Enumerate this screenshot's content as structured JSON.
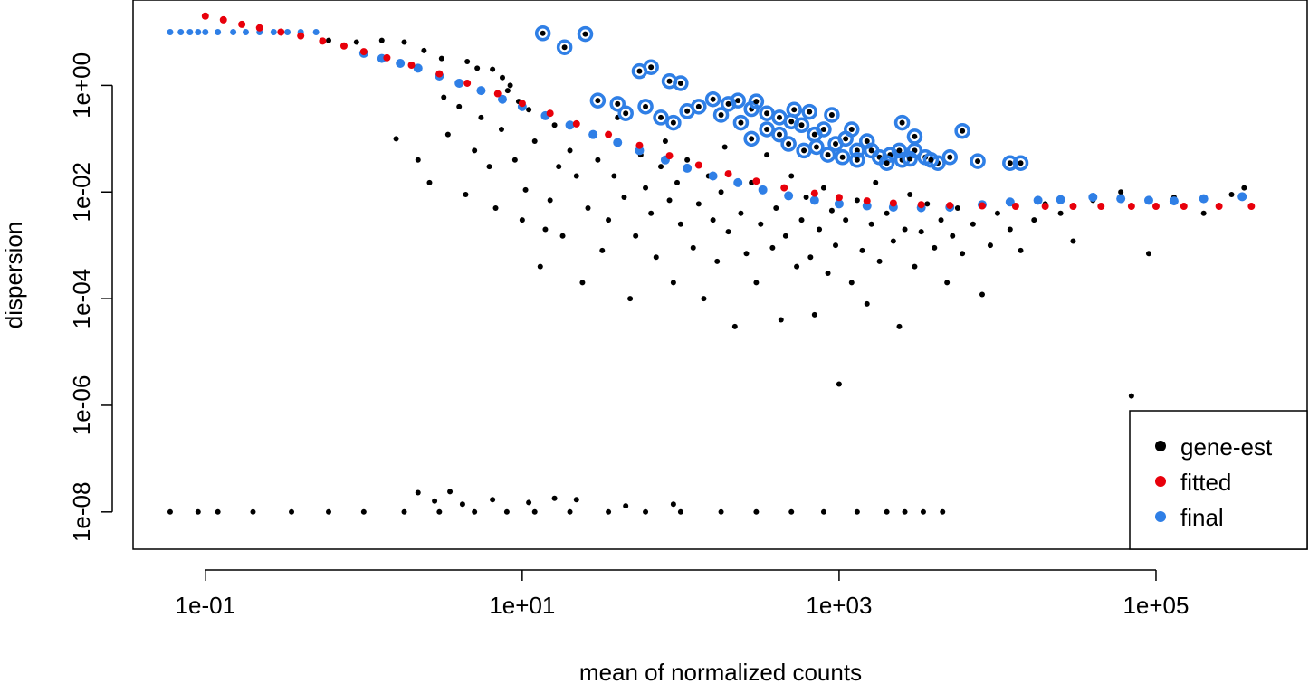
{
  "chart_data": {
    "type": "scatter",
    "xlabel": "mean of normalized counts",
    "ylabel": "dispersion",
    "xscale": "log10",
    "yscale": "log10",
    "xlim": [
      0.035,
      900000
    ],
    "ylim": [
      2e-09,
      40
    ],
    "grid": false,
    "legend_placement": "bottom-right",
    "x_ticks": [
      {
        "value": 0.1,
        "label": "1e-01"
      },
      {
        "value": 10,
        "label": "1e+01"
      },
      {
        "value": 1000,
        "label": "1e+03"
      },
      {
        "value": 100000,
        "label": "1e+05"
      }
    ],
    "y_ticks": [
      {
        "value": 1e-08,
        "label": "1e-08"
      },
      {
        "value": 1e-06,
        "label": "1e-06"
      },
      {
        "value": 0.0001,
        "label": "1e-04"
      },
      {
        "value": 0.01,
        "label": "1e-02"
      },
      {
        "value": 1,
        "label": "1e+00"
      }
    ],
    "series": [
      {
        "name": "gene-est",
        "color": "#000000"
      },
      {
        "name": "fitted",
        "color": "#e8000b"
      },
      {
        "name": "final",
        "color": "#2f7fe6"
      }
    ],
    "points": {
      "gene_est_zero_dispersion": [
        [
          0.06,
          1e-08
        ],
        [
          0.09,
          1e-08
        ],
        [
          0.12,
          1e-08
        ],
        [
          0.2,
          1e-08
        ],
        [
          0.35,
          1e-08
        ],
        [
          0.6,
          1e-08
        ],
        [
          1,
          1e-08
        ],
        [
          1.8,
          1e-08
        ],
        [
          3,
          1e-08
        ],
        [
          5,
          1e-08
        ],
        [
          8,
          1e-08
        ],
        [
          12,
          1e-08
        ],
        [
          20,
          1e-08
        ],
        [
          35,
          1e-08
        ],
        [
          60,
          1e-08
        ],
        [
          100,
          1e-08
        ],
        [
          180,
          1e-08
        ],
        [
          300,
          1e-08
        ],
        [
          500,
          1e-08
        ],
        [
          800,
          1e-08
        ],
        [
          1300,
          1e-08
        ],
        [
          2000,
          1e-08
        ],
        [
          2600,
          1e-08
        ],
        [
          3400,
          1e-08
        ],
        [
          4500,
          1e-08
        ],
        [
          2.2,
          2.3e-08
        ],
        [
          2.8,
          1.6e-08
        ],
        [
          3.5,
          2.4e-08
        ],
        [
          4.2,
          1.4e-08
        ],
        [
          6.5,
          1.7e-08
        ],
        [
          11,
          1.5e-08
        ],
        [
          16,
          1.8e-08
        ],
        [
          22,
          1.7e-08
        ],
        [
          45,
          1.3e-08
        ],
        [
          90,
          1.4e-08
        ]
      ],
      "gene_est": [
        [
          0.6,
          7
        ],
        [
          0.9,
          6.5
        ],
        [
          1.3,
          7
        ],
        [
          1.8,
          6.5
        ],
        [
          2.4,
          4.5
        ],
        [
          3.1,
          3.2
        ],
        [
          4.5,
          2.8
        ],
        [
          5.2,
          2.1
        ],
        [
          6.5,
          2
        ],
        [
          7.5,
          1.4
        ],
        [
          8.4,
          1.0
        ],
        [
          1.6,
          0.1
        ],
        [
          2.2,
          0.04
        ],
        [
          2.6,
          0.015
        ],
        [
          3.2,
          0.6
        ],
        [
          3.4,
          0.12
        ],
        [
          4.0,
          0.4
        ],
        [
          4.4,
          0.009
        ],
        [
          5.0,
          0.06
        ],
        [
          5.5,
          0.25
        ],
        [
          6.2,
          0.03
        ],
        [
          6.8,
          0.005
        ],
        [
          7.4,
          0.15
        ],
        [
          8.1,
          0.8
        ],
        [
          9.0,
          0.04
        ],
        [
          9.5,
          0.5
        ],
        [
          10,
          0.003
        ],
        [
          10.5,
          0.011
        ],
        [
          11,
          0.35
        ],
        [
          12,
          0.09
        ],
        [
          13,
          0.0004
        ],
        [
          14,
          0.002
        ],
        [
          15,
          0.007
        ],
        [
          16,
          0.18
        ],
        [
          17,
          0.03
        ],
        [
          18,
          0.0015
        ],
        [
          20,
          0.06
        ],
        [
          22,
          0.02
        ],
        [
          24,
          0.0002
        ],
        [
          26,
          0.005
        ],
        [
          28,
          0.12
        ],
        [
          30,
          0.04
        ],
        [
          32,
          0.0008
        ],
        [
          35,
          0.003
        ],
        [
          38,
          0.02
        ],
        [
          40,
          0.25
        ],
        [
          44,
          0.008
        ],
        [
          48,
          0.0001
        ],
        [
          52,
          0.0015
        ],
        [
          56,
          0.05
        ],
        [
          60,
          0.012
        ],
        [
          65,
          0.004
        ],
        [
          70,
          0.0006
        ],
        [
          75,
          0.03
        ],
        [
          80,
          0.09
        ],
        [
          85,
          0.007
        ],
        [
          90,
          0.0002
        ],
        [
          95,
          0.015
        ],
        [
          100,
          0.0025
        ],
        [
          110,
          0.04
        ],
        [
          120,
          0.0009
        ],
        [
          130,
          0.006
        ],
        [
          140,
          0.0001
        ],
        [
          150,
          0.02
        ],
        [
          160,
          0.003
        ],
        [
          170,
          0.0005
        ],
        [
          180,
          0.01
        ],
        [
          190,
          0.07
        ],
        [
          200,
          0.0018
        ],
        [
          220,
          3e-05
        ],
        [
          240,
          0.004
        ],
        [
          260,
          0.0007
        ],
        [
          280,
          0.015
        ],
        [
          300,
          0.0002
        ],
        [
          320,
          0.0025
        ],
        [
          350,
          0.05
        ],
        [
          380,
          0.0009
        ],
        [
          400,
          0.005
        ],
        [
          430,
          4e-05
        ],
        [
          460,
          0.0015
        ],
        [
          500,
          0.02
        ],
        [
          540,
          0.0004
        ],
        [
          580,
          0.003
        ],
        [
          620,
          0.008
        ],
        [
          660,
          0.0006
        ],
        [
          700,
          5e-05
        ],
        [
          750,
          0.002
        ],
        [
          800,
          0.012
        ],
        [
          850,
          0.0003
        ],
        [
          900,
          0.0045
        ],
        [
          950,
          0.001
        ],
        [
          1000,
          2.5e-06
        ],
        [
          1100,
          0.003
        ],
        [
          1200,
          0.0002
        ],
        [
          1300,
          0.007
        ],
        [
          1400,
          0.0008
        ],
        [
          1500,
          8e-05
        ],
        [
          1600,
          0.0025
        ],
        [
          1700,
          0.015
        ],
        [
          1800,
          0.0005
        ],
        [
          2000,
          0.004
        ],
        [
          2200,
          0.0012
        ],
        [
          2400,
          3e-05
        ],
        [
          2600,
          0.002
        ],
        [
          2800,
          0.009
        ],
        [
          3000,
          0.0004
        ],
        [
          3300,
          0.0018
        ],
        [
          3600,
          0.006
        ],
        [
          4000,
          0.0009
        ],
        [
          4400,
          0.003
        ],
        [
          4800,
          0.0002
        ],
        [
          5200,
          0.0015
        ],
        [
          5600,
          0.005
        ],
        [
          6000,
          0.0007
        ],
        [
          7000,
          0.0025
        ],
        [
          8000,
          0.00012
        ],
        [
          9000,
          0.001
        ],
        [
          10000,
          0.004
        ],
        [
          12000,
          0.002
        ],
        [
          14000,
          0.0008
        ],
        [
          17000,
          0.003
        ],
        [
          20000,
          0.006
        ],
        [
          25000,
          0.004
        ],
        [
          30000,
          0.0012
        ],
        [
          40000,
          0.007
        ],
        [
          60000,
          0.01
        ],
        [
          90000,
          0.0007
        ],
        [
          130000,
          0.008
        ],
        [
          200000,
          0.004
        ],
        [
          360000,
          0.012
        ],
        [
          70000,
          1.5e-06
        ],
        [
          300000,
          0.009
        ]
      ],
      "fitted": [
        [
          0.1,
          20
        ],
        [
          0.13,
          17
        ],
        [
          0.17,
          14
        ],
        [
          0.22,
          12
        ],
        [
          0.3,
          10
        ],
        [
          0.4,
          8.5
        ],
        [
          0.55,
          6.8
        ],
        [
          0.75,
          5.5
        ],
        [
          1,
          4.3
        ],
        [
          1.4,
          3.3
        ],
        [
          2,
          2.4
        ],
        [
          3,
          1.65
        ],
        [
          4.5,
          1.1
        ],
        [
          7,
          0.7
        ],
        [
          10,
          0.46
        ],
        [
          15,
          0.3
        ],
        [
          22,
          0.19
        ],
        [
          35,
          0.12
        ],
        [
          55,
          0.075
        ],
        [
          85,
          0.048
        ],
        [
          130,
          0.032
        ],
        [
          200,
          0.022
        ],
        [
          300,
          0.016
        ],
        [
          450,
          0.012
        ],
        [
          700,
          0.0095
        ],
        [
          1000,
          0.0079
        ],
        [
          1500,
          0.0068
        ],
        [
          2200,
          0.0062
        ],
        [
          3300,
          0.0058
        ],
        [
          5000,
          0.0056
        ],
        [
          8000,
          0.0055
        ],
        [
          13000,
          0.0054
        ],
        [
          20000,
          0.0054
        ],
        [
          30000,
          0.0054
        ],
        [
          45000,
          0.0054
        ],
        [
          70000,
          0.0054
        ],
        [
          100000,
          0.0054
        ],
        [
          150000,
          0.0054
        ],
        [
          250000,
          0.0054
        ],
        [
          400000,
          0.0054
        ]
      ],
      "final_boundary": [
        [
          0.06,
          10
        ],
        [
          0.07,
          10
        ],
        [
          0.08,
          10
        ],
        [
          0.09,
          10
        ],
        [
          0.1,
          10
        ],
        [
          0.12,
          10
        ],
        [
          0.15,
          10
        ],
        [
          0.18,
          10
        ],
        [
          0.22,
          10
        ],
        [
          0.27,
          10
        ],
        [
          0.33,
          10
        ],
        [
          0.4,
          10
        ],
        [
          0.5,
          10
        ]
      ],
      "final": [
        [
          1,
          4.0
        ],
        [
          1.3,
          3.2
        ],
        [
          1.7,
          2.6
        ],
        [
          2.2,
          2.1
        ],
        [
          3,
          1.5
        ],
        [
          4,
          1.1
        ],
        [
          5.5,
          0.8
        ],
        [
          7.5,
          0.55
        ],
        [
          10,
          0.4
        ],
        [
          14,
          0.27
        ],
        [
          20,
          0.18
        ],
        [
          28,
          0.12
        ],
        [
          40,
          0.085
        ],
        [
          55,
          0.06
        ],
        [
          80,
          0.04
        ],
        [
          110,
          0.028
        ],
        [
          160,
          0.02
        ],
        [
          230,
          0.015
        ],
        [
          330,
          0.011
        ],
        [
          480,
          0.0085
        ],
        [
          700,
          0.007
        ],
        [
          1000,
          0.006
        ],
        [
          1500,
          0.0055
        ],
        [
          2200,
          0.0052
        ],
        [
          3300,
          0.0051
        ],
        [
          5000,
          0.0052
        ],
        [
          8000,
          0.0058
        ],
        [
          12000,
          0.0065
        ],
        [
          18000,
          0.007
        ],
        [
          25000,
          0.0072
        ],
        [
          40000,
          0.008
        ],
        [
          60000,
          0.0075
        ],
        [
          90000,
          0.007
        ],
        [
          130000,
          0.0068
        ],
        [
          200000,
          0.0075
        ],
        [
          350000,
          0.0082
        ]
      ],
      "outliers": [
        [
          13.5,
          9.5
        ],
        [
          18.5,
          5.2
        ],
        [
          25,
          9.2
        ],
        [
          55,
          1.85
        ],
        [
          65,
          2.2
        ],
        [
          85,
          1.2
        ],
        [
          100,
          1.1
        ],
        [
          160,
          0.55
        ],
        [
          200,
          0.45
        ],
        [
          230,
          0.52
        ],
        [
          280,
          0.36
        ],
        [
          350,
          0.3
        ],
        [
          420,
          0.25
        ],
        [
          500,
          0.21
        ],
        [
          580,
          0.18
        ],
        [
          700,
          0.12
        ],
        [
          800,
          0.15
        ],
        [
          950,
          0.08
        ],
        [
          1100,
          0.1
        ],
        [
          1300,
          0.06
        ],
        [
          1500,
          0.09
        ],
        [
          1800,
          0.045
        ],
        [
          2100,
          0.05
        ],
        [
          2500,
          0.04
        ],
        [
          3000,
          0.06
        ],
        [
          3500,
          0.045
        ],
        [
          4200,
          0.035
        ],
        [
          5000,
          0.045
        ],
        [
          6000,
          0.14
        ],
        [
          7500,
          0.038
        ],
        [
          12000,
          0.035
        ],
        [
          14000,
          0.035
        ],
        [
          2500,
          0.2
        ],
        [
          3000,
          0.11
        ],
        [
          1200,
          0.15
        ],
        [
          900,
          0.28
        ],
        [
          650,
          0.32
        ],
        [
          520,
          0.35
        ],
        [
          300,
          0.5
        ],
        [
          240,
          0.2
        ],
        [
          180,
          0.28
        ],
        [
          130,
          0.4
        ],
        [
          110,
          0.33
        ],
        [
          90,
          0.2
        ],
        [
          75,
          0.25
        ],
        [
          60,
          0.4
        ],
        [
          40,
          0.45
        ],
        [
          30,
          0.52
        ],
        [
          45,
          0.3
        ],
        [
          280,
          0.1
        ],
        [
          350,
          0.15
        ],
        [
          420,
          0.12
        ],
        [
          480,
          0.08
        ],
        [
          600,
          0.06
        ],
        [
          720,
          0.07
        ],
        [
          850,
          0.05
        ],
        [
          1050,
          0.045
        ],
        [
          1300,
          0.04
        ],
        [
          1600,
          0.06
        ],
        [
          2000,
          0.035
        ],
        [
          2400,
          0.06
        ],
        [
          2800,
          0.042
        ],
        [
          3800,
          0.04
        ]
      ]
    }
  }
}
